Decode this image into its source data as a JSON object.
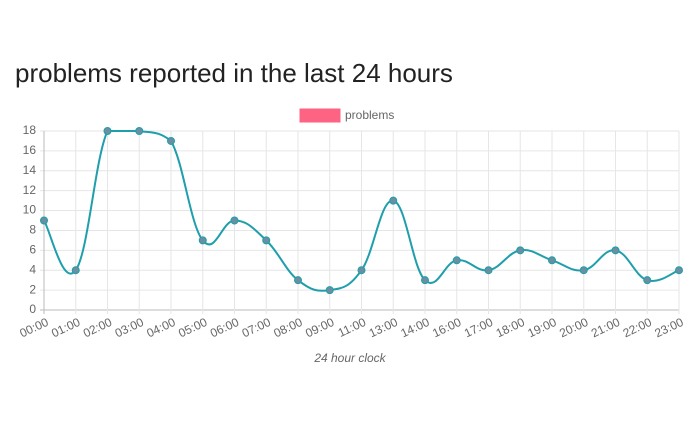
{
  "chart_data": {
    "type": "line",
    "title": "problems reported in the last 24 hours",
    "x_label": "24 hour clock",
    "categories": [
      "00:00",
      "01:00",
      "02:00",
      "03:00",
      "04:00",
      "05:00",
      "06:00",
      "07:00",
      "08:00",
      "09:00",
      "11:00",
      "13:00",
      "14:00",
      "16:00",
      "17:00",
      "18:00",
      "19:00",
      "20:00",
      "21:00",
      "22:00",
      "23:00"
    ],
    "series": [
      {
        "name": "problems",
        "color": "#1f9eab",
        "legend_color": "#ff6384",
        "point_color": "#6a8fa0",
        "values": [
          9,
          4,
          18,
          18,
          17,
          7,
          9,
          7,
          3,
          2,
          4,
          11,
          3,
          5,
          4,
          6,
          5,
          4,
          6,
          3,
          4
        ]
      }
    ],
    "ylim": [
      0,
      18
    ],
    "yticks": [
      0,
      2,
      4,
      6,
      8,
      10,
      12,
      14,
      16,
      18
    ],
    "grid": true
  }
}
